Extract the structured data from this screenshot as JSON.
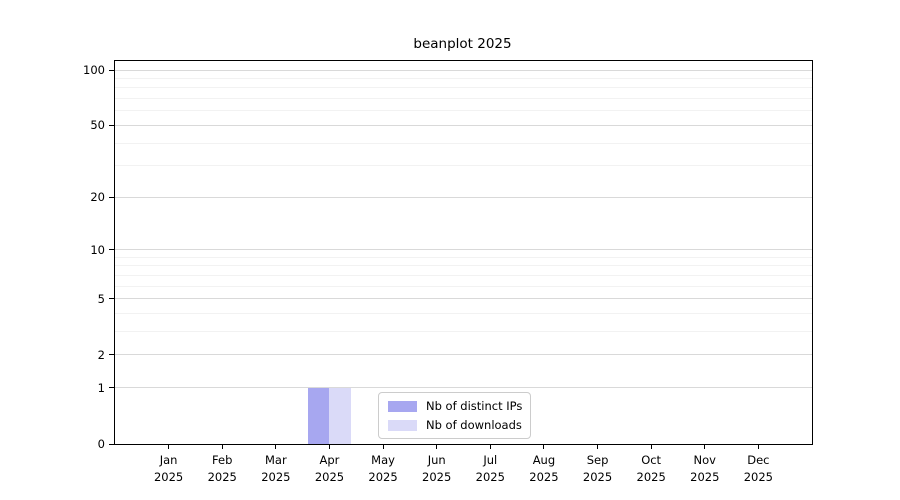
{
  "title": "beanplot 2025",
  "chart_data": {
    "type": "bar",
    "title": "beanplot 2025",
    "categories": [
      "Jan",
      "Feb",
      "Mar",
      "Apr",
      "May",
      "Jun",
      "Jul",
      "Aug",
      "Sep",
      "Oct",
      "Nov",
      "Dec"
    ],
    "category_year": "2025",
    "series": [
      {
        "name": "Nb of distinct IPs",
        "color": "#a7a7f0",
        "values": [
          0,
          0,
          0,
          1,
          0,
          0,
          0,
          0,
          0,
          0,
          0,
          0
        ]
      },
      {
        "name": "Nb of downloads",
        "color": "#dadaf8",
        "values": [
          0,
          0,
          0,
          1,
          0,
          0,
          0,
          0,
          0,
          0,
          0,
          0
        ]
      }
    ],
    "xlabel": "",
    "ylabel": "",
    "yscale": "log1p",
    "yticks": [
      0,
      1,
      2,
      5,
      10,
      20,
      50,
      100
    ],
    "minor_yticks": [
      3,
      4,
      6,
      7,
      8,
      9,
      30,
      40,
      60,
      70,
      80,
      90
    ],
    "ylim": [
      0,
      112
    ],
    "grid": true,
    "legend_position": "bottom-center"
  },
  "colors": {
    "axis": "#000000",
    "major_grid": "#d9d9d9",
    "minor_grid": "#f2f2f2",
    "background": "#ffffff",
    "legend_border": "#cccccc",
    "text": "#000000"
  }
}
